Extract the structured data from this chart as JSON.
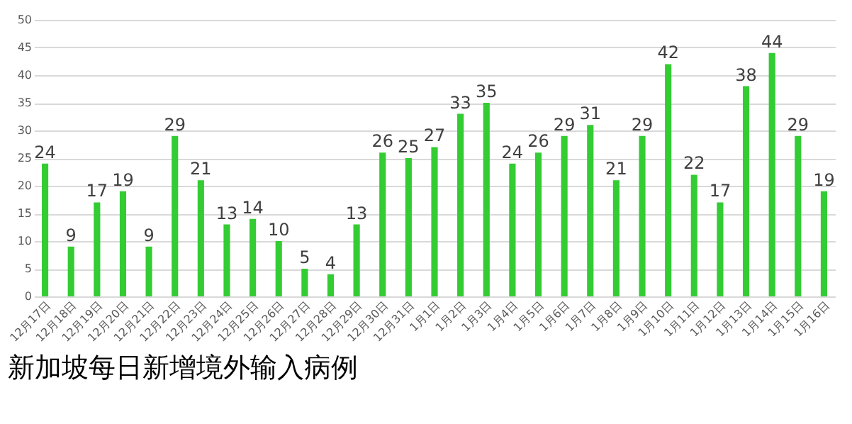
{
  "chart_data": {
    "type": "bar",
    "title": "新加坡每日新增境外输入病例",
    "categories": [
      "12月17日",
      "12月18日",
      "12月19日",
      "12月20日",
      "12月21日",
      "12月22日",
      "12月23日",
      "12月24日",
      "12月25日",
      "12月26日",
      "12月27日",
      "12月28日",
      "12月29日",
      "12月30日",
      "12月31日",
      "1月1日",
      "1月2日",
      "1月3日",
      "1月4日",
      "1月5日",
      "1月6日",
      "1月7日",
      "1月8日",
      "1月9日",
      "1月10日",
      "1月11日",
      "1月12日",
      "1月13日",
      "1月14日",
      "1月15日",
      "1月16日"
    ],
    "values": [
      24,
      9,
      17,
      19,
      9,
      29,
      21,
      13,
      14,
      10,
      5,
      4,
      13,
      26,
      25,
      27,
      33,
      35,
      24,
      26,
      29,
      31,
      21,
      29,
      42,
      22,
      17,
      38,
      44,
      29,
      19
    ],
    "color": "#33cc33",
    "ylim": [
      0,
      50
    ],
    "yticks": [
      0,
      5,
      10,
      15,
      20,
      25,
      30,
      35,
      40,
      45,
      50
    ],
    "grid": "y",
    "data_labels": true
  }
}
